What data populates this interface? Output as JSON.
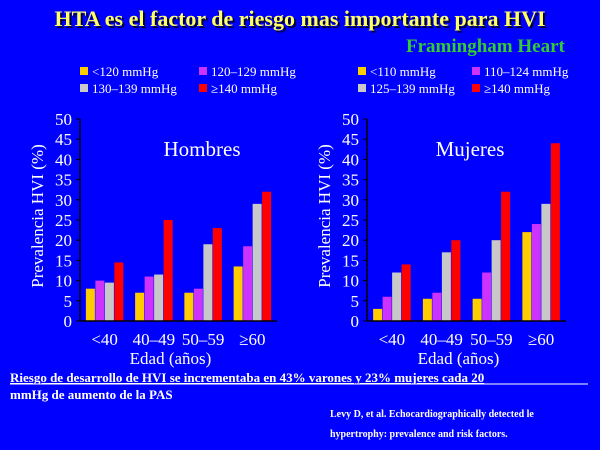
{
  "slide": {
    "title": "HTA es el factor de riesgo mas importante para HVI",
    "subtitle": "Framingham Heart",
    "footnote_line1": "Riesgo de desarrollo de HVI se incrementaba en 43% varones y 23% mujeres cada 20",
    "footnote_line2": "mmHg de aumento de la PAS",
    "reference_line1": "Levy D, et al. Echocardiographically detected le",
    "reference_line2": "hypertrophy: prevalence and risk factors."
  },
  "colors": {
    "series": [
      "#ffcc00",
      "#cc33ff",
      "#c8c8c8",
      "#ff0000"
    ],
    "axis": "#000000",
    "background": "#0000ff"
  },
  "chart_data": [
    {
      "type": "bar",
      "title": "Hombres",
      "xlabel": "Edad (años)",
      "ylabel": "Prevalencia HVI (%)",
      "ylim": [
        0,
        50
      ],
      "yticks": [
        "0",
        "5",
        "10",
        "15",
        "20",
        "25",
        "30",
        "35",
        "40",
        "45",
        "50"
      ],
      "categories": [
        "<40",
        "40–49",
        "50–59",
        "≥60"
      ],
      "series": [
        {
          "name": "<120 mmHg",
          "values": [
            8,
            7,
            7,
            13.5
          ]
        },
        {
          "name": "120–129 mmHg",
          "values": [
            10,
            11,
            8,
            18.5
          ]
        },
        {
          "name": "130–139 mmHg",
          "values": [
            9.5,
            11.5,
            19,
            29
          ]
        },
        {
          "name": "≥140 mmHg",
          "values": [
            14.5,
            25,
            23,
            32
          ]
        }
      ],
      "legend": "top",
      "grid": false
    },
    {
      "type": "bar",
      "title": "Mujeres",
      "xlabel": "Edad (años)",
      "ylabel": "Prevalencia HVI (%)",
      "ylim": [
        0,
        50
      ],
      "yticks": [
        "0",
        "5",
        "10",
        "15",
        "20",
        "25",
        "30",
        "35",
        "40",
        "45",
        "50"
      ],
      "categories": [
        "<40",
        "40–49",
        "50–59",
        "≥60"
      ],
      "series": [
        {
          "name": "<110 mmHg",
          "values": [
            3,
            5.5,
            5.5,
            22
          ]
        },
        {
          "name": "110–124 mmHg",
          "values": [
            6,
            7,
            12,
            24
          ]
        },
        {
          "name": "125–139 mmHg",
          "values": [
            12,
            17,
            20,
            29
          ]
        },
        {
          "name": "≥140 mmHg",
          "values": [
            14,
            20,
            32,
            44
          ]
        }
      ],
      "legend": "top",
      "grid": false
    }
  ]
}
